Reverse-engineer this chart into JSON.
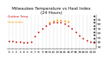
{
  "title": "Milwaukee Temperature vs Heat Index\n(24 Hours)",
  "background_color": "#ffffff",
  "grid_color": "#999999",
  "ylim": [
    25,
    100
  ],
  "xlim": [
    -0.5,
    23.5
  ],
  "temp_x": [
    0,
    1,
    2,
    3,
    4,
    5,
    6,
    7,
    8,
    9,
    10,
    11,
    12,
    13,
    14,
    15,
    16,
    17,
    18,
    19,
    20,
    21,
    22,
    23
  ],
  "temp_y": [
    42,
    42,
    41,
    40,
    39,
    39,
    41,
    52,
    62,
    70,
    76,
    80,
    83,
    84,
    83,
    80,
    76,
    70,
    62,
    54,
    48,
    44,
    40,
    38
  ],
  "heat_x": [
    11,
    12,
    13,
    14,
    15,
    16
  ],
  "heat_y": [
    84,
    87,
    88,
    88,
    87,
    85
  ],
  "legend_dot_x": [
    23,
    23,
    23,
    23,
    23,
    23,
    23,
    23,
    23
  ],
  "legend_dot_y": [
    97,
    90,
    83,
    76,
    69,
    62,
    55,
    48,
    41
  ],
  "temp_color": "#cc0000",
  "heat_color": "#ff9900",
  "legend_color": "#000000",
  "dot_size": 2.5,
  "title_fontsize": 4.2,
  "tick_fontsize": 3.2,
  "legend_fontsize": 3.0,
  "yticks": [
    30,
    40,
    50,
    60,
    70,
    80,
    90
  ],
  "xticks": [
    0,
    1,
    2,
    3,
    4,
    5,
    6,
    7,
    8,
    9,
    10,
    11,
    12,
    13,
    14,
    15,
    16,
    17,
    18,
    19,
    20,
    21,
    22,
    23
  ]
}
